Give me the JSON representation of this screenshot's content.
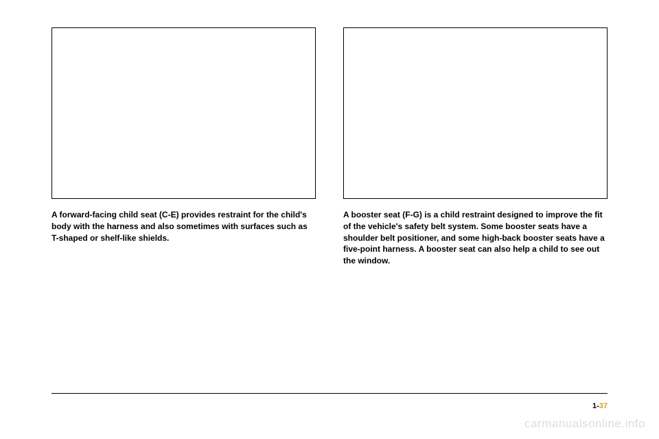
{
  "left_column": {
    "caption": "A forward-facing child seat (C-E) provides restraint for the child's body with the harness and also sometimes with surfaces such as T-shaped or shelf-like shields."
  },
  "right_column": {
    "caption": "A booster seat (F-G) is a child restraint designed to improve the fit of the vehicle's safety belt system. Some booster seats have a shoulder belt positioner, and some high-back booster seats have a five-point harness. A booster seat can also help a child to see out the window."
  },
  "page_number_prefix": "1-",
  "page_number_suffix": "37",
  "watermark": "carmanualsonline.info"
}
